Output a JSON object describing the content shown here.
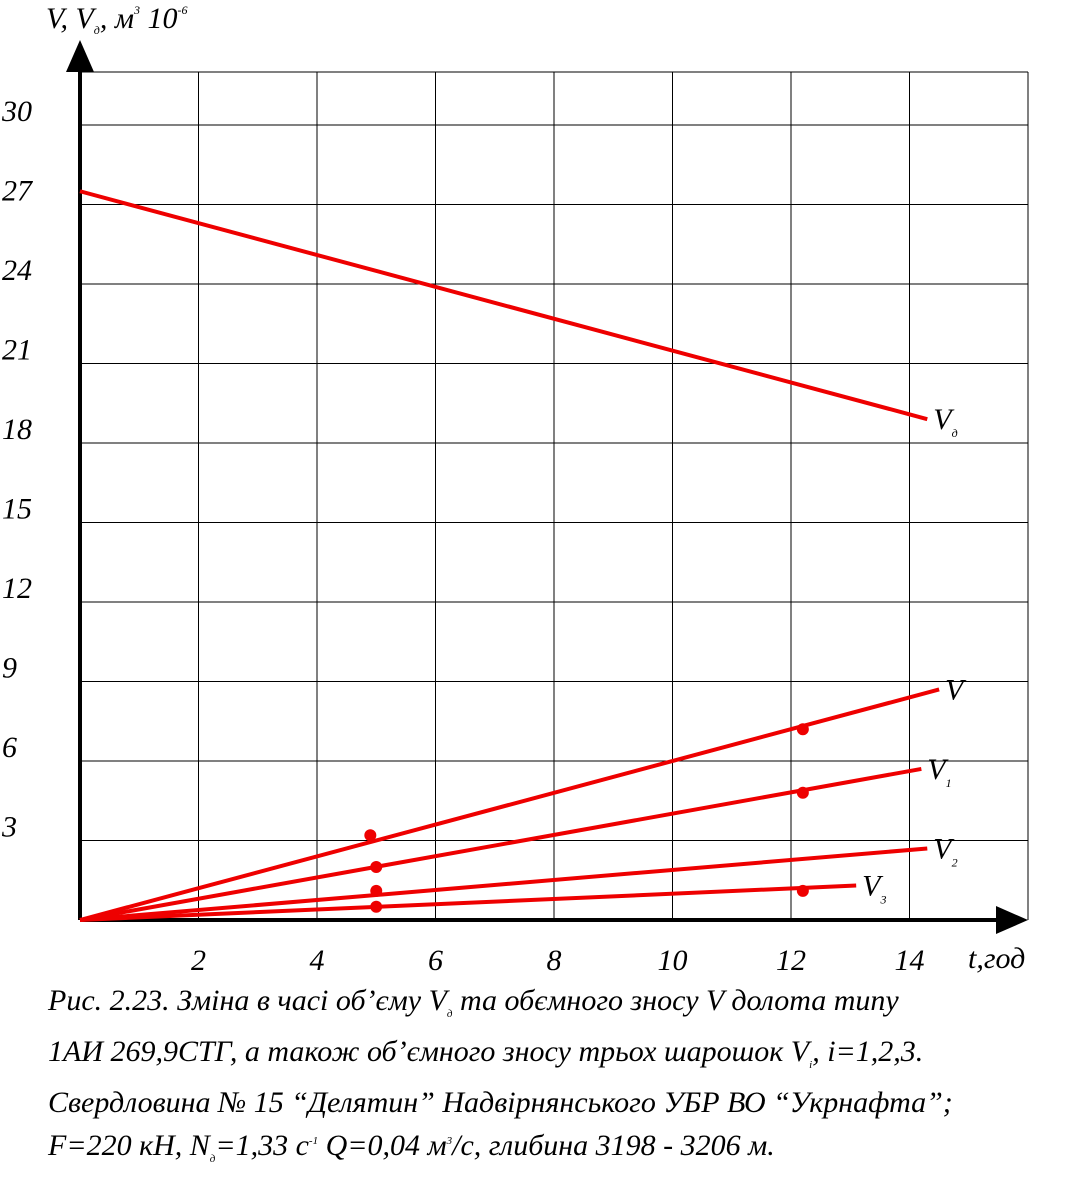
{
  "chart_data": {
    "type": "line",
    "y_axis_label": {
      "main": "V, V",
      "sub": "д",
      "rest": ", м",
      "unit_sup": "3",
      "rest2": " 10",
      "power_sup": "-6"
    },
    "x_axis_label": "t,год",
    "x_ticks": [
      2,
      4,
      6,
      8,
      10,
      12,
      14
    ],
    "y_ticks": [
      3,
      6,
      9,
      12,
      15,
      18,
      21,
      24,
      27,
      30
    ],
    "xlim": [
      0,
      16
    ],
    "ylim": [
      0,
      32
    ],
    "grid": true,
    "line_color": "#ee0000",
    "series": [
      {
        "name": "V",
        "label_main": "V",
        "label_sub": "",
        "x": [
          0,
          14.5
        ],
        "y": [
          0,
          8.7
        ],
        "points": [
          {
            "x": 12.2,
            "y": 7.2
          },
          {
            "x": 4.9,
            "y": 3.2
          }
        ]
      },
      {
        "name": "Vд",
        "label_main": "V",
        "label_sub": "д",
        "x": [
          0,
          14.3
        ],
        "y": [
          27.5,
          18.9
        ],
        "points": []
      },
      {
        "name": "V1",
        "label_main": "V",
        "label_sub": "1",
        "x": [
          0,
          14.2
        ],
        "y": [
          0,
          5.7
        ],
        "points": [
          {
            "x": 12.2,
            "y": 4.8
          },
          {
            "x": 5.0,
            "y": 2.0
          }
        ]
      },
      {
        "name": "V2",
        "label_main": "V",
        "label_sub": "2",
        "x": [
          0,
          14.3
        ],
        "y": [
          0,
          2.7
        ],
        "points": [
          {
            "x": 5.0,
            "y": 1.1
          }
        ]
      },
      {
        "name": "V3",
        "label_main": "V",
        "label_sub": "3",
        "x": [
          0,
          13.1
        ],
        "y": [
          0,
          1.3
        ],
        "points": [
          {
            "x": 12.2,
            "y": 1.1
          },
          {
            "x": 5.0,
            "y": 0.5
          }
        ]
      }
    ]
  },
  "caption": {
    "line1_a": "Рис. 2.23. Зміна в часі об’єму V",
    "line1_sub": "д",
    "line1_b": " та обємного зносу V долота типу",
    "line2_a": "1АИ 269,9СТГ, а також об’ємного зносу трьох шарошок V",
    "line2_sub": "і",
    "line2_b": ", і=1,2,3.",
    "line3": "Свердловина № 15 “Делятин” Надвірнянського УБР ВО “Укрнафта”;",
    "line4_a": "F=220 кН, N",
    "line4_sub": "д",
    "line4_b": "=1,33 с",
    "line4_sup": "-1",
    "line4_c": " Q=0,04 м",
    "line4_sup2": "3",
    "line4_d": "/с, глибина 3198 - 3206 м."
  }
}
